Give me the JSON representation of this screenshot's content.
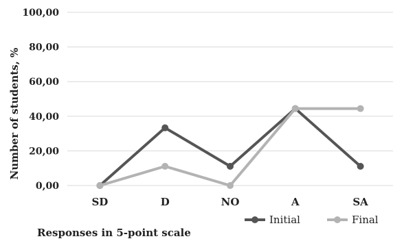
{
  "chart_data": {
    "type": "line",
    "categories": [
      "SD",
      "D",
      "NO",
      "A",
      "SA"
    ],
    "series": [
      {
        "name": "Initial",
        "values": [
          0,
          33.33,
          11.11,
          44.44,
          11.11
        ],
        "color": "#555555"
      },
      {
        "name": "Final",
        "values": [
          0,
          11.11,
          0,
          44.44,
          44.44
        ],
        "color": "#b3b3b3"
      }
    ],
    "title": "",
    "xlabel": "Responses in 5-point scale",
    "ylabel": "Number of students, %",
    "ylim": [
      0,
      100
    ],
    "yticks": [
      "0,00",
      "20,00",
      "40,00",
      "60,00",
      "80,00",
      "100,00"
    ],
    "grid": true,
    "legend": "bottom-right"
  }
}
